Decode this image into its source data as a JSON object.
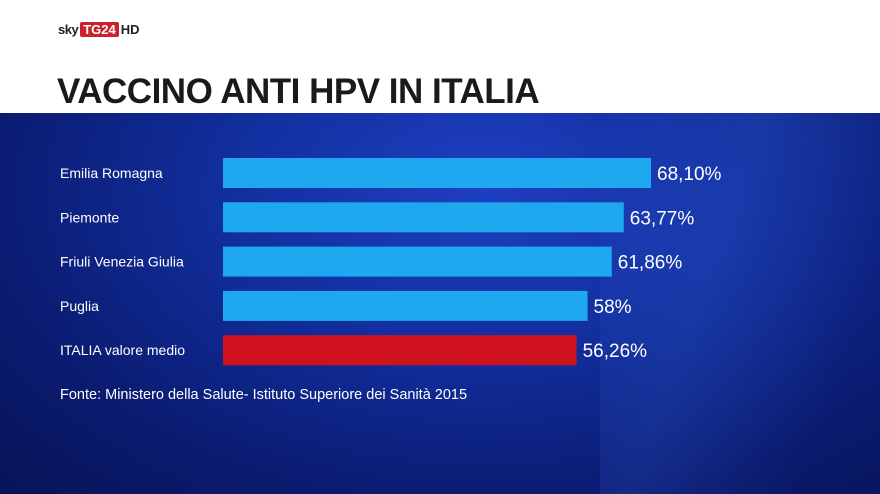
{
  "logo": {
    "sky": "sky",
    "tg": "TG24",
    "hd": "HD"
  },
  "chart_data": {
    "type": "bar",
    "orientation": "horizontal",
    "title": "VACCINO ANTI HPV IN ITALIA",
    "categories": [
      "Emilia Romagna",
      "Piemonte",
      "Friuli Venezia Giulia",
      "Puglia",
      "ITALIA valore medio"
    ],
    "values": [
      68.1,
      63.77,
      61.86,
      58,
      56.26
    ],
    "value_labels": [
      "68,10%",
      "63,77%",
      "61,86%",
      "58%",
      "56,26%"
    ],
    "bar_colors": [
      "#1ea8f0",
      "#1ea8f0",
      "#1ea8f0",
      "#1ea8f0",
      "#d0121f"
    ],
    "xlim": [
      0,
      100
    ],
    "unit": "%",
    "source": "Fonte: Ministero della Salute- Istituto Superiore dei Sanità 2015",
    "grid": false
  }
}
